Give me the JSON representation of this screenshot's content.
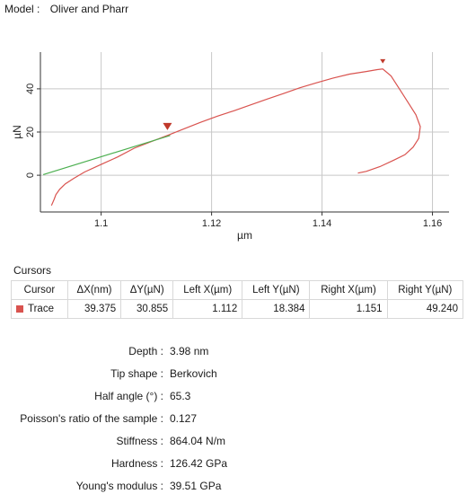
{
  "model": {
    "label": "Model :",
    "value": "Oliver and Pharr"
  },
  "chart_data": {
    "type": "line",
    "xlabel": "µm",
    "ylabel": "µN",
    "xlim": [
      1.089,
      1.163
    ],
    "ylim": [
      -17,
      57
    ],
    "x_ticks": [
      1.1,
      1.12,
      1.14,
      1.16
    ],
    "x_tick_labels": [
      "1.1",
      "1.12",
      "1.14",
      "1.16"
    ],
    "y_ticks": [
      0,
      20,
      40
    ],
    "y_tick_labels": [
      "0",
      "20",
      "40"
    ],
    "grid": true,
    "colors": {
      "trace": "#d9534f",
      "fit": "#4caf50",
      "grid": "#c8c8c8",
      "marker": "#c0392b"
    },
    "series": [
      {
        "role": "trace",
        "x": [
          1.091,
          1.0915,
          1.0918,
          1.0925,
          1.0935,
          1.095,
          1.097,
          1.1,
          1.103,
          1.106,
          1.109,
          1.112,
          1.115,
          1.118,
          1.121,
          1.124,
          1.127,
          1.13,
          1.133,
          1.136,
          1.139,
          1.142,
          1.145,
          1.148,
          1.15,
          1.151,
          1.1525,
          1.154,
          1.1555,
          1.157,
          1.1578,
          1.1575,
          1.1565,
          1.155,
          1.153,
          1.1505,
          1.148,
          1.1465
        ],
        "y": [
          -14,
          -11,
          -9,
          -6.5,
          -4,
          -1.5,
          1.5,
          5,
          8.5,
          12.5,
          15.5,
          18.4,
          21.5,
          24.5,
          27.3,
          29.8,
          32.5,
          35.2,
          37.8,
          40.5,
          42.8,
          45,
          46.8,
          48,
          48.9,
          49.2,
          46,
          40,
          34,
          28,
          22.5,
          17,
          13,
          9.5,
          7,
          4,
          1.8,
          1
        ]
      },
      {
        "role": "fit",
        "x": [
          1.0895,
          1.1125
        ],
        "y": [
          0.3,
          18.4
        ]
      }
    ],
    "cursor_markers": [
      {
        "x": 1.112,
        "y": 18.384
      },
      {
        "x": 1.151,
        "y": 49.24
      }
    ]
  },
  "cursors": {
    "title": "Cursors",
    "columns": [
      "Cursor",
      "ΔX(nm)",
      "ΔY(µN)",
      "Left X(µm)",
      "Left Y(µN)",
      "Right X(µm)",
      "Right Y(µN)"
    ],
    "rows": [
      {
        "name": "Trace",
        "dx": "39.375",
        "dy": "30.855",
        "lx": "1.112",
        "ly": "18.384",
        "rx": "1.151",
        "ry": "49.240"
      }
    ]
  },
  "results": [
    {
      "label": "Depth :",
      "value": "3.98 nm"
    },
    {
      "label": "Tip shape :",
      "value": "Berkovich"
    },
    {
      "label": "Half angle (°) :",
      "value": "65.3"
    },
    {
      "label": "Poisson's ratio of the sample :",
      "value": "0.127"
    },
    {
      "label": "Stiffness :",
      "value": "864.04 N/m"
    },
    {
      "label": "Hardness :",
      "value": "126.42 GPa"
    },
    {
      "label": "Young's modulus :",
      "value": "39.51 GPa"
    }
  ]
}
